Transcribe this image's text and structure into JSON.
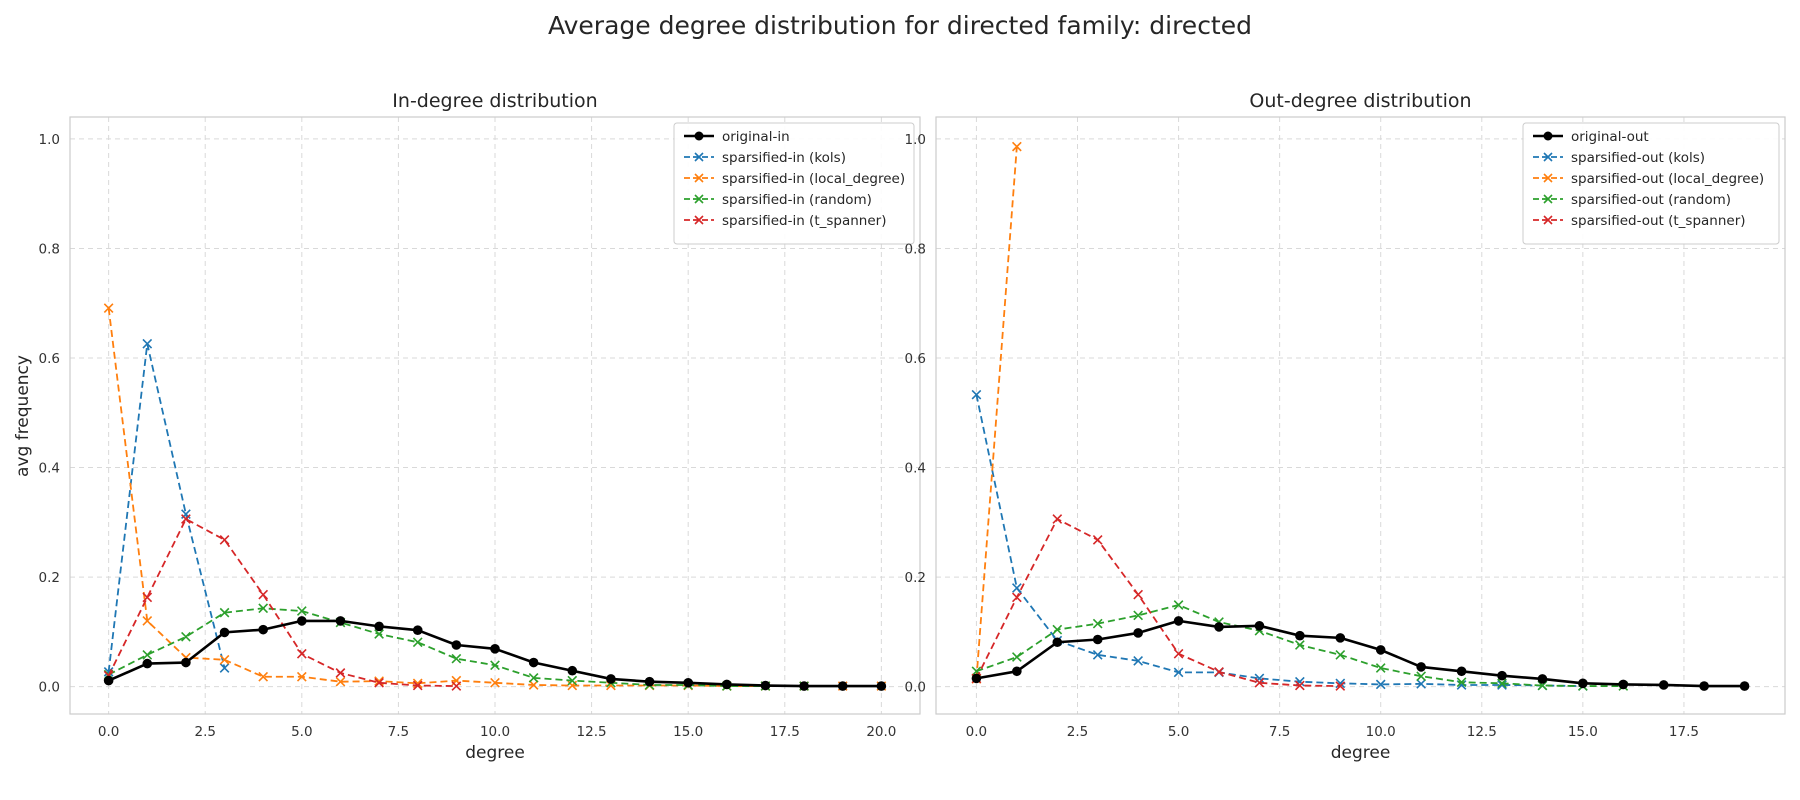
{
  "figure": {
    "title": "Average degree distribution for directed family: directed",
    "ylabel": "avg frequency"
  },
  "colors": {
    "original": "#000000",
    "kols": "#1f77b4",
    "local_degree": "#ff7f0e",
    "random": "#2ca02c",
    "t_spanner": "#d62728",
    "grid": "#d9d9d9",
    "frame": "#cccccc"
  },
  "chart_data": [
    {
      "type": "line",
      "title": "In-degree distribution",
      "xlabel": "degree",
      "ylabel": "avg frequency",
      "xlim": [
        -1,
        21
      ],
      "ylim": [
        -0.05,
        1.04
      ],
      "xticks": [
        0.0,
        2.5,
        5.0,
        7.5,
        10.0,
        12.5,
        15.0,
        17.5,
        20.0
      ],
      "yticks": [
        0.0,
        0.2,
        0.4,
        0.6,
        0.8,
        1.0
      ],
      "grid": true,
      "legend_position": "top-right",
      "series": [
        {
          "name": "original-in",
          "key": "original",
          "style": "solid-circle",
          "x": [
            0,
            1,
            2,
            3,
            4,
            5,
            6,
            7,
            8,
            9,
            10,
            11,
            12,
            13,
            14,
            15,
            16,
            17,
            18,
            19,
            20
          ],
          "y": [
            0.011,
            0.042,
            0.044,
            0.099,
            0.104,
            0.12,
            0.12,
            0.11,
            0.103,
            0.076,
            0.069,
            0.044,
            0.029,
            0.014,
            0.009,
            0.007,
            0.004,
            0.002,
            0.001,
            0.001,
            0.001
          ]
        },
        {
          "name": "sparsified-in (kols)",
          "key": "kols",
          "style": "dashed-x",
          "x": [
            0,
            1,
            2,
            3
          ],
          "y": [
            0.027,
            0.626,
            0.315,
            0.034
          ]
        },
        {
          "name": "sparsified-in (local_degree)",
          "key": "local_degree",
          "style": "dashed-x",
          "x": [
            0,
            1,
            2,
            3,
            4,
            5,
            6,
            7,
            8,
            9,
            10,
            11,
            12,
            13,
            14,
            15,
            16,
            17,
            18,
            19,
            20
          ],
          "y": [
            0.691,
            0.12,
            0.053,
            0.049,
            0.018,
            0.018,
            0.009,
            0.01,
            0.006,
            0.011,
            0.007,
            0.003,
            0.002,
            0.002,
            0.002,
            0.002,
            0.001,
            0.001,
            0.001,
            0.001,
            0.001
          ]
        },
        {
          "name": "sparsified-in (random)",
          "key": "random",
          "style": "dashed-x",
          "x": [
            0,
            1,
            2,
            3,
            4,
            5,
            6,
            7,
            8,
            9,
            10,
            11,
            12,
            13,
            14,
            15,
            16,
            17,
            18
          ],
          "y": [
            0.022,
            0.058,
            0.091,
            0.135,
            0.143,
            0.138,
            0.117,
            0.096,
            0.081,
            0.051,
            0.039,
            0.016,
            0.011,
            0.007,
            0.003,
            0.003,
            0.001,
            0.001,
            0.001
          ]
        },
        {
          "name": "sparsified-in (t_spanner)",
          "key": "t_spanner",
          "style": "dashed-x",
          "x": [
            0,
            1,
            2,
            3,
            4,
            5,
            6,
            7,
            8,
            9
          ],
          "y": [
            0.02,
            0.163,
            0.306,
            0.268,
            0.168,
            0.06,
            0.025,
            0.007,
            0.002,
            0.001
          ]
        }
      ]
    },
    {
      "type": "line",
      "title": "Out-degree distribution",
      "xlabel": "degree",
      "ylabel": "",
      "xlim": [
        -1,
        20
      ],
      "ylim": [
        -0.05,
        1.04
      ],
      "xticks": [
        0.0,
        2.5,
        5.0,
        7.5,
        10.0,
        12.5,
        15.0,
        17.5
      ],
      "yticks": [
        0.0,
        0.2,
        0.4,
        0.6,
        0.8,
        1.0
      ],
      "grid": true,
      "legend_position": "top-right",
      "series": [
        {
          "name": "original-out",
          "key": "original",
          "style": "solid-circle",
          "x": [
            0,
            1,
            2,
            3,
            4,
            5,
            6,
            7,
            8,
            9,
            10,
            11,
            12,
            13,
            14,
            15,
            16,
            17,
            18,
            19
          ],
          "y": [
            0.015,
            0.028,
            0.081,
            0.086,
            0.098,
            0.12,
            0.109,
            0.111,
            0.093,
            0.089,
            0.067,
            0.036,
            0.028,
            0.02,
            0.014,
            0.006,
            0.004,
            0.003,
            0.001,
            0.001
          ]
        },
        {
          "name": "sparsified-out (kols)",
          "key": "kols",
          "style": "dashed-x",
          "x": [
            0,
            1,
            2,
            3,
            4,
            5,
            6,
            7,
            8,
            9,
            10,
            11,
            12,
            13,
            14,
            15
          ],
          "y": [
            0.533,
            0.18,
            0.084,
            0.058,
            0.047,
            0.026,
            0.026,
            0.015,
            0.009,
            0.006,
            0.004,
            0.005,
            0.003,
            0.003,
            0.002,
            0.001
          ]
        },
        {
          "name": "sparsified-out (local_degree)",
          "key": "local_degree",
          "style": "dashed-x",
          "x": [
            0,
            1
          ],
          "y": [
            0.014,
            0.986
          ]
        },
        {
          "name": "sparsified-out (random)",
          "key": "random",
          "style": "dashed-x",
          "x": [
            0,
            1,
            2,
            3,
            4,
            5,
            6,
            7,
            8,
            9,
            10,
            11,
            12,
            13,
            14,
            15,
            16
          ],
          "y": [
            0.028,
            0.054,
            0.104,
            0.115,
            0.13,
            0.149,
            0.118,
            0.102,
            0.076,
            0.058,
            0.034,
            0.019,
            0.008,
            0.006,
            0.002,
            0.001,
            0.001
          ]
        },
        {
          "name": "sparsified-out (t_spanner)",
          "key": "t_spanner",
          "style": "dashed-x",
          "x": [
            0,
            1,
            2,
            3,
            4,
            5,
            6,
            7,
            8,
            9
          ],
          "y": [
            0.015,
            0.163,
            0.306,
            0.268,
            0.168,
            0.06,
            0.027,
            0.007,
            0.002,
            0.001
          ]
        }
      ]
    }
  ]
}
